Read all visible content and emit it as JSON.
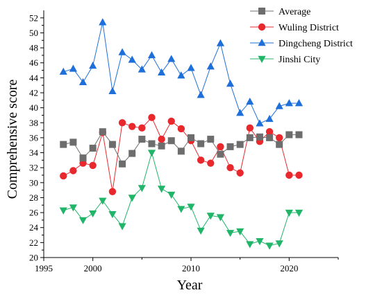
{
  "chart_data": {
    "type": "line",
    "title": "",
    "xlabel": "Year",
    "ylabel": "Comprehensive score",
    "xlim": [
      1995,
      2025
    ],
    "ylim": [
      20,
      53
    ],
    "xticks": [
      1995,
      2000,
      2010,
      2020
    ],
    "xtick_labels": [
      "1995",
      "2000",
      "2010",
      "2020"
    ],
    "yticks": [
      20,
      22,
      24,
      26,
      28,
      30,
      32,
      34,
      36,
      38,
      40,
      42,
      44,
      46,
      48,
      50,
      52
    ],
    "ytick_labels": [
      "20",
      "22",
      "24",
      "26",
      "28",
      "30",
      "32",
      "34",
      "36",
      "38",
      "40",
      "42",
      "44",
      "46",
      "48",
      "50",
      "52"
    ],
    "grid": false,
    "legend_position": "top-right",
    "x": [
      1997,
      1998,
      1999,
      2000,
      2001,
      2002,
      2003,
      2004,
      2005,
      2006,
      2007,
      2008,
      2009,
      2010,
      2011,
      2012,
      2013,
      2014,
      2015,
      2016,
      2017,
      2018,
      2019,
      2020,
      2021
    ],
    "series": [
      {
        "name": "Average",
        "color": "#6d6d6d",
        "marker": "square",
        "values": [
          35.1,
          35.4,
          33.3,
          34.6,
          36.8,
          35.1,
          32.5,
          33.9,
          35.8,
          35.2,
          34.9,
          35.6,
          34.2,
          36.0,
          35.2,
          35.8,
          33.8,
          34.8,
          35.1,
          36.0,
          36.1,
          36.0,
          35.1,
          36.4,
          36.4
        ]
      },
      {
        "name": "Wuling District",
        "color": "#e8282d",
        "marker": "circle",
        "values": [
          30.9,
          31.6,
          32.6,
          32.3,
          36.7,
          28.8,
          38.0,
          37.5,
          37.3,
          38.7,
          35.8,
          38.2,
          37.2,
          35.6,
          33.0,
          32.6,
          34.8,
          32.0,
          31.3,
          37.3,
          35.5,
          36.8,
          36.0,
          31.0,
          31.0
        ]
      },
      {
        "name": "Dingcheng District",
        "color": "#1e6fd9",
        "marker": "triangle-up",
        "values": [
          44.8,
          45.2,
          43.4,
          45.6,
          51.4,
          42.2,
          47.4,
          46.4,
          45.1,
          47.0,
          44.7,
          46.5,
          44.3,
          45.3,
          41.7,
          45.5,
          48.6,
          43.2,
          39.3,
          40.8,
          37.9,
          38.5,
          40.2,
          40.6,
          40.6
        ]
      },
      {
        "name": "Jinshi City",
        "color": "#21b569",
        "marker": "triangle-down",
        "values": [
          26.3,
          26.7,
          25.0,
          25.9,
          27.6,
          25.8,
          24.2,
          28.0,
          29.3,
          34.0,
          29.2,
          28.4,
          26.5,
          26.8,
          23.6,
          25.6,
          25.4,
          23.3,
          23.5,
          21.8,
          22.2,
          21.6,
          21.9,
          26.0,
          26.0
        ]
      }
    ]
  }
}
